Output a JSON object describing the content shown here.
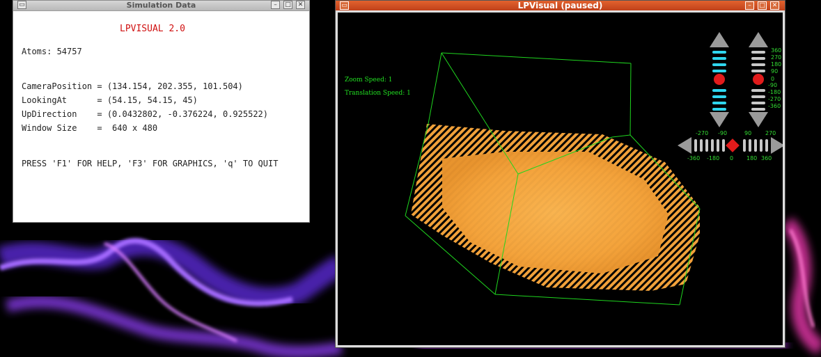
{
  "colors": {
    "hud_green": "#22e022",
    "particle_orange": "#f5a43a",
    "app_title_red": "#d01010",
    "titlebar_orange": "#d9562a"
  },
  "simulation_window": {
    "title": "Simulation Data",
    "app_title": "LPVISUAL 2.0",
    "atoms": "Atoms: 54757",
    "camera_position": "CameraPosition = (134.154, 202.355, 101.504)",
    "looking_at": "LookingAt      = (54.15, 54.15, 45)",
    "up_direction": "UpDirection    = (0.0432802, -0.376224, 0.925522)",
    "window_size": "Window Size    =  640 x 480",
    "help": "PRESS 'F1' FOR HELP, 'F3' FOR GRAPHICS, 'q' TO QUIT"
  },
  "visual_window": {
    "title": "LPVisual (paused)",
    "zoom_speed": "Zoom Speed: 1",
    "translation_speed": "Translation Speed: 1",
    "vertical_ticks": [
      "360",
      "270",
      "180",
      "90",
      "0",
      "-90",
      "-180",
      "-270",
      "-360"
    ],
    "horizontal_ticks_top": [
      "-270",
      "-90",
      "90",
      "270"
    ],
    "horizontal_ticks_bottom": [
      "-360",
      "-180",
      "0",
      "180",
      "360"
    ]
  },
  "icons": [
    "window-menu-icon",
    "minimize-icon",
    "maximize-icon",
    "close-icon",
    "arrow-up-icon",
    "arrow-down-icon",
    "arrow-left-icon",
    "arrow-right-icon",
    "slider-knob-icon"
  ]
}
